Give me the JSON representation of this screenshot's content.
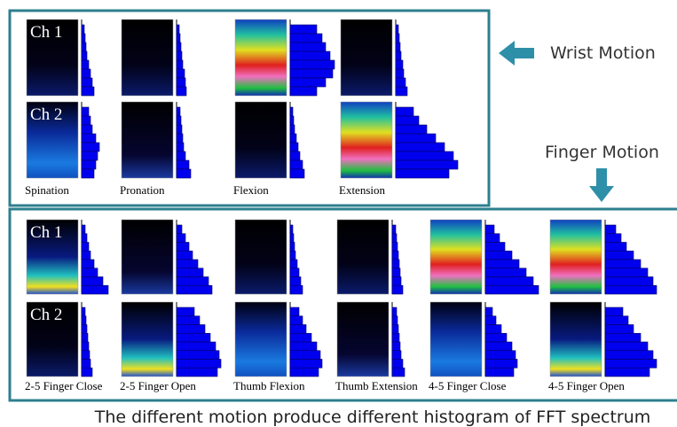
{
  "wrist": {
    "label": "Wrist Motion",
    "channels": [
      "Ch 1",
      "Ch 2"
    ],
    "panels": [
      {
        "label": "Spination",
        "ch1_hist": [
          3,
          4,
          5,
          6,
          8,
          10,
          12,
          14
        ],
        "ch2_hist": [
          8,
          10,
          12,
          16,
          20,
          18,
          16,
          14
        ]
      },
      {
        "label": "Pronation",
        "ch1_hist": [
          3,
          4,
          5,
          6,
          7,
          9,
          10,
          11
        ],
        "ch2_hist": [
          4,
          5,
          6,
          7,
          8,
          10,
          14,
          16
        ]
      },
      {
        "label": "Flexion",
        "ch1_hist": [
          30,
          36,
          40,
          45,
          50,
          48,
          40,
          30
        ],
        "ch2_hist": [
          3,
          4,
          5,
          7,
          9,
          11,
          14,
          16
        ]
      },
      {
        "label": "Extension",
        "ch1_hist": [
          3,
          4,
          5,
          6,
          8,
          9,
          11,
          13
        ],
        "ch2_hist": [
          20,
          26,
          35,
          45,
          55,
          65,
          70,
          60
        ]
      }
    ]
  },
  "finger": {
    "label": "Finger Motion",
    "channels": [
      "Ch 1",
      "Ch 2"
    ],
    "panels": [
      {
        "label": "2-5 Finger Close",
        "ch1_hist": [
          4,
          6,
          8,
          10,
          14,
          18,
          24,
          30
        ],
        "ch2_hist": [
          4,
          5,
          6,
          7,
          8,
          9,
          10,
          12
        ]
      },
      {
        "label": "2-5 Finger Open",
        "ch1_hist": [
          6,
          10,
          14,
          18,
          24,
          30,
          36,
          40
        ],
        "ch2_hist": [
          20,
          26,
          32,
          38,
          44,
          48,
          50,
          46
        ]
      },
      {
        "label": "Thumb Flexion",
        "ch1_hist": [
          3,
          4,
          5,
          6,
          8,
          10,
          12,
          14
        ],
        "ch2_hist": [
          10,
          14,
          18,
          24,
          30,
          34,
          36,
          32
        ]
      },
      {
        "label": "Thumb Extension",
        "ch1_hist": [
          4,
          5,
          6,
          7,
          8,
          9,
          10,
          12
        ],
        "ch2_hist": [
          5,
          6,
          7,
          8,
          9,
          10,
          12,
          14
        ]
      },
      {
        "label": "4-5 Finger Close",
        "ch1_hist": [
          10,
          16,
          22,
          30,
          38,
          46,
          54,
          60
        ],
        "ch2_hist": [
          8,
          12,
          18,
          24,
          30,
          34,
          36,
          32
        ]
      },
      {
        "label": "4-5 Finger Open",
        "ch1_hist": [
          12,
          18,
          24,
          32,
          40,
          48,
          54,
          58
        ],
        "ch2_hist": [
          20,
          26,
          32,
          40,
          48,
          54,
          58,
          50
        ]
      }
    ]
  },
  "caption": "The different motion produce different histogram of FFT spectrum"
}
